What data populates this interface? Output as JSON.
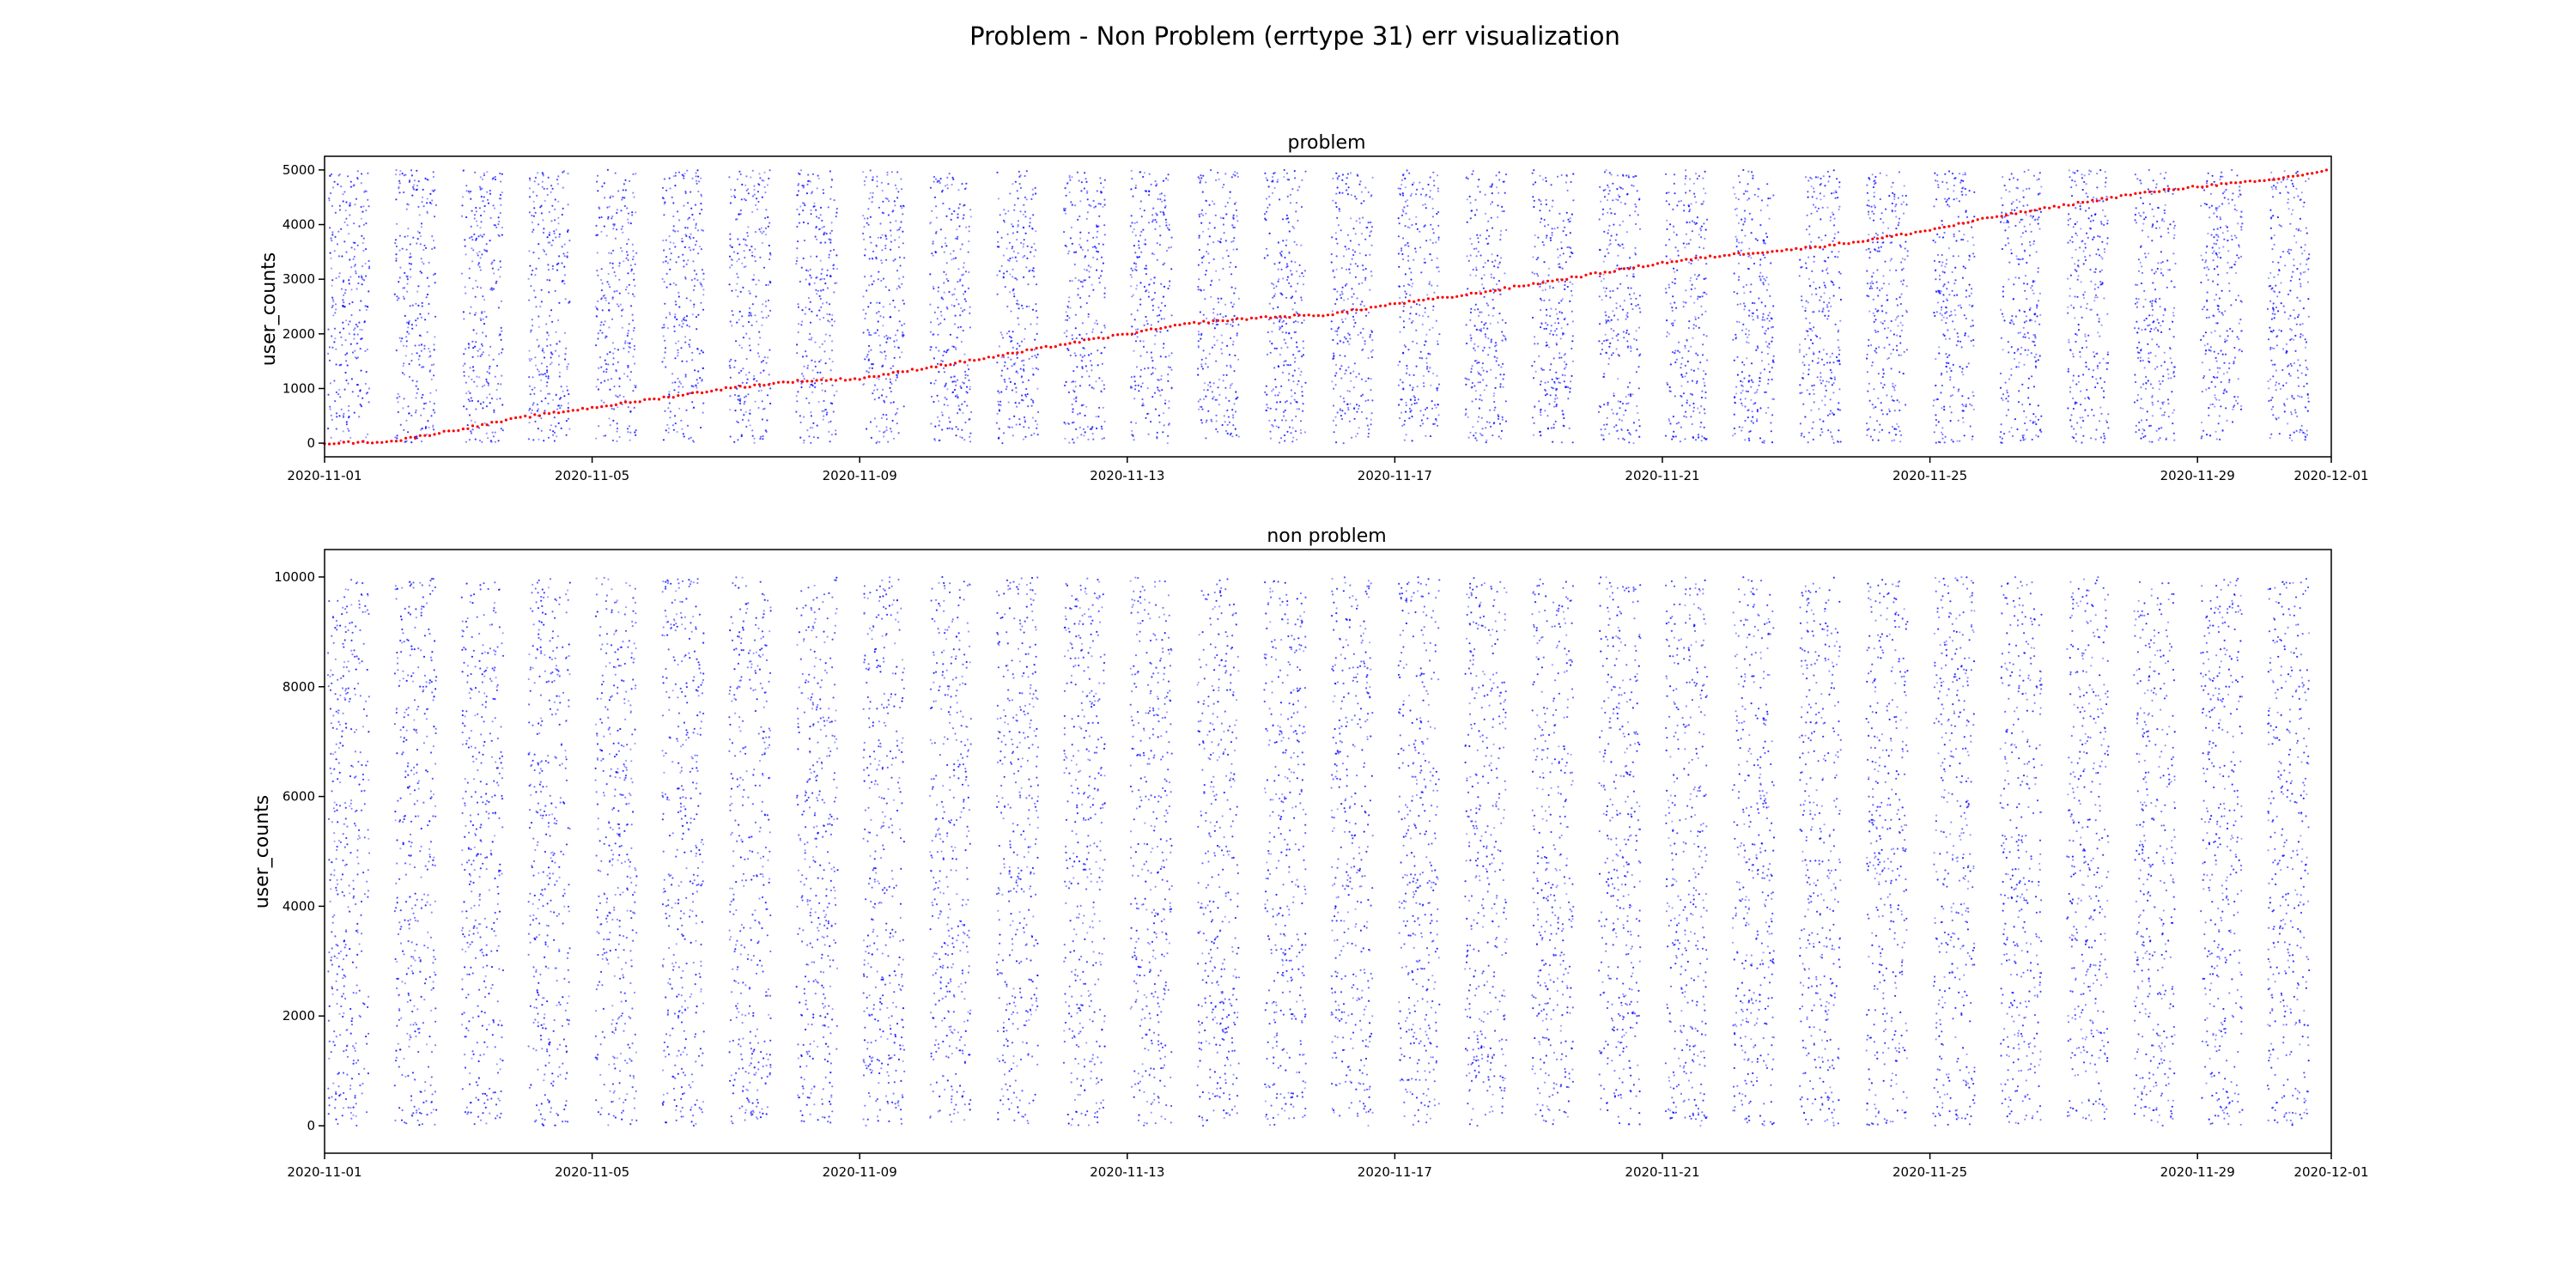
{
  "figure": {
    "suptitle": "Problem - Non Problem (errtype 31)  err visualization"
  },
  "colors": {
    "points": "#0000ff",
    "highlight": "#ff0000",
    "axes": "#000000",
    "background": "#ffffff"
  },
  "chart_data": [
    {
      "type": "scatter",
      "title": "problem",
      "xlabel": "",
      "ylabel": "user_counts",
      "xlim": [
        "2020-11-01",
        "2020-12-01"
      ],
      "ylim": [
        -250,
        5250
      ],
      "grid": false,
      "x_ticks": [
        "2020-11-01",
        "2020-11-05",
        "2020-11-09",
        "2020-11-13",
        "2020-11-17",
        "2020-11-21",
        "2020-11-25",
        "2020-11-29",
        "2020-12-01"
      ],
      "y_ticks": [
        0,
        1000,
        2000,
        3000,
        4000,
        5000
      ],
      "series": [
        {
          "color": "#0000ff",
          "description_values": "dense daily bands of err events across user_counts 0–5000",
          "y_range": [
            0,
            5000
          ]
        },
        {
          "color": "#ff0000",
          "x": [
            "2020-11-01",
            "2020-11-02",
            "2020-11-03",
            "2020-11-04",
            "2020-11-05",
            "2020-11-06",
            "2020-11-07",
            "2020-11-08",
            "2020-11-09",
            "2020-11-10",
            "2020-11-11",
            "2020-11-12",
            "2020-11-13",
            "2020-11-14",
            "2020-11-15",
            "2020-11-16",
            "2020-11-17",
            "2020-11-18",
            "2020-11-19",
            "2020-11-20",
            "2020-11-21",
            "2020-11-22",
            "2020-11-23",
            "2020-11-24",
            "2020-11-25",
            "2020-11-26",
            "2020-11-27",
            "2020-11-28",
            "2020-11-29",
            "2020-11-30",
            "2020-12-01"
          ],
          "values": [
            0,
            30,
            250,
            480,
            650,
            820,
            1000,
            1130,
            1180,
            1380,
            1580,
            1800,
            2000,
            2200,
            2300,
            2350,
            2550,
            2700,
            2900,
            3100,
            3300,
            3450,
            3550,
            3700,
            3900,
            4150,
            4350,
            4550,
            4700,
            4800,
            5000
          ]
        }
      ]
    },
    {
      "type": "scatter",
      "title": "non problem",
      "xlabel": "",
      "ylabel": "user_counts",
      "xlim": [
        "2020-11-01",
        "2020-12-01"
      ],
      "ylim": [
        -500,
        10500
      ],
      "grid": false,
      "x_ticks": [
        "2020-11-01",
        "2020-11-05",
        "2020-11-09",
        "2020-11-13",
        "2020-11-17",
        "2020-11-21",
        "2020-11-25",
        "2020-11-29",
        "2020-12-01"
      ],
      "y_ticks": [
        0,
        2000,
        4000,
        6000,
        8000,
        10000
      ],
      "series": [
        {
          "color": "#0000ff",
          "y_range": [
            0,
            10000
          ]
        }
      ]
    }
  ]
}
